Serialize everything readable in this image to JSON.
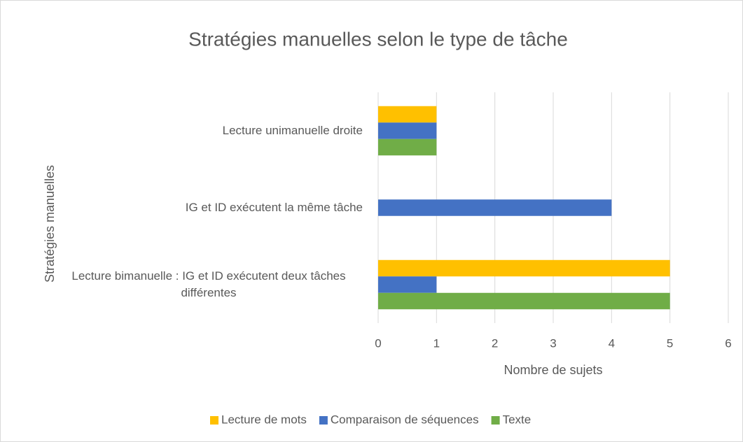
{
  "chart_data": {
    "type": "bar",
    "orientation": "horizontal",
    "title": "Stratégies manuelles selon le type de tâche",
    "x_label": "Nombre de sujets",
    "y_label": "Stratégies manuelles",
    "categories": [
      "Lecture unimanuelle droite",
      "IG et ID exécutent la même tâche",
      "Lecture bimanuelle : IG et ID exécutent deux tâches différentes"
    ],
    "series": [
      {
        "name": "Lecture de mots",
        "color": "#FFC000",
        "values": [
          1,
          0,
          5
        ]
      },
      {
        "name": "Comparaison de séquences",
        "color": "#4472C4",
        "values": [
          1,
          4,
          1
        ]
      },
      {
        "name": "Texte",
        "color": "#70AD47",
        "values": [
          1,
          0,
          5
        ]
      }
    ],
    "xlim": [
      0,
      6
    ],
    "xticks": [
      0,
      1,
      2,
      3,
      4,
      5,
      6
    ],
    "grid": true,
    "legend": "bottom"
  }
}
